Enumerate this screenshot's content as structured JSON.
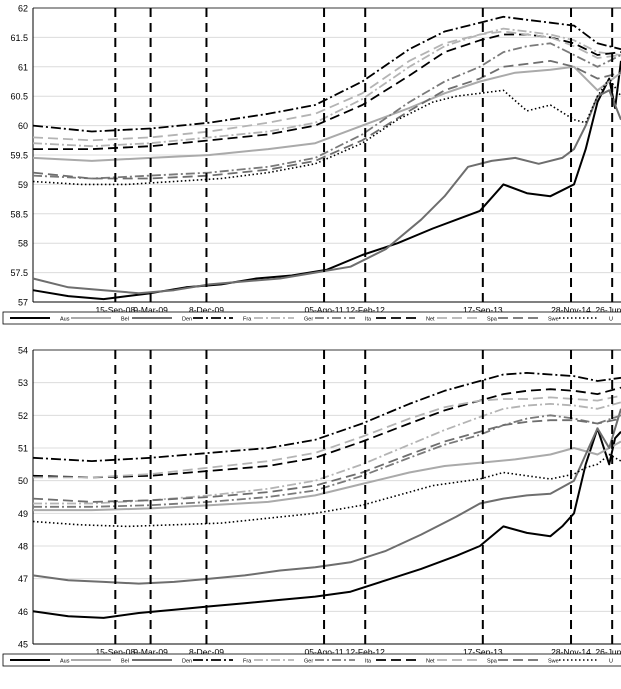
{
  "chart_data": [
    {
      "type": "line",
      "ylim": [
        57,
        62
      ],
      "yticks": [
        57,
        57.5,
        58,
        58.5,
        59,
        59.5,
        60,
        60.5,
        61,
        61.5,
        62
      ],
      "xlim": [
        0,
        100
      ],
      "event_lines": [
        {
          "label": "15-Sep-08",
          "x": 14
        },
        {
          "label": "9-Mar-09",
          "x": 20
        },
        {
          "label": "8-Dec-09",
          "x": 29.5
        },
        {
          "label": "05-Ago-11",
          "x": 49.5
        },
        {
          "label": "12-Feb-12",
          "x": 56.5
        },
        {
          "label": "17-Sep-13",
          "x": 76.5
        },
        {
          "label": "28-Nov-14",
          "x": 91.5
        },
        {
          "label": "26-Jun-1",
          "x": 98.5
        }
      ],
      "grid": true,
      "legend_position": "bottom",
      "series": [
        {
          "name": "Aus",
          "x": [
            0,
            6,
            12,
            16,
            20,
            26,
            32,
            38,
            44,
            50,
            56,
            62,
            68,
            72,
            76,
            80,
            84,
            88,
            90,
            92,
            94,
            96,
            98,
            99,
            100
          ],
          "values": [
            57.2,
            57.1,
            57.05,
            57.1,
            57.15,
            57.25,
            57.3,
            57.4,
            57.45,
            57.55,
            57.8,
            58.0,
            58.25,
            58.4,
            58.55,
            59.0,
            58.85,
            58.8,
            58.9,
            59.0,
            59.6,
            60.4,
            60.8,
            60.3,
            61.1
          ]
        },
        {
          "name": "Bel",
          "x": [
            0,
            10,
            20,
            30,
            40,
            48,
            56,
            64,
            70,
            76,
            82,
            88,
            92,
            96,
            100
          ],
          "values": [
            59.45,
            59.4,
            59.45,
            59.5,
            59.6,
            59.7,
            60.0,
            60.3,
            60.55,
            60.75,
            60.9,
            60.95,
            61.0,
            60.6,
            60.9
          ]
        },
        {
          "name": "Den",
          "x": [
            0,
            6,
            12,
            18,
            24,
            30,
            36,
            42,
            48,
            54,
            60,
            66,
            70,
            74,
            78,
            82,
            86,
            90,
            92,
            94,
            96,
            98,
            100
          ],
          "values": [
            57.4,
            57.25,
            57.2,
            57.15,
            57.2,
            57.3,
            57.35,
            57.4,
            57.5,
            57.6,
            57.9,
            58.4,
            58.8,
            59.3,
            59.4,
            59.45,
            59.35,
            59.45,
            59.6,
            60.0,
            60.5,
            60.6,
            60.1
          ]
        },
        {
          "name": "Fra",
          "x": [
            0,
            10,
            20,
            30,
            40,
            48,
            56,
            64,
            70,
            76,
            80,
            84,
            88,
            92,
            96,
            100
          ],
          "values": [
            60.0,
            59.9,
            59.95,
            60.05,
            60.2,
            60.35,
            60.75,
            61.3,
            61.6,
            61.75,
            61.85,
            61.8,
            61.75,
            61.7,
            61.4,
            61.3
          ]
        },
        {
          "name": "Ger",
          "x": [
            0,
            10,
            20,
            30,
            40,
            48,
            56,
            64,
            70,
            76,
            80,
            84,
            88,
            92,
            96,
            100
          ],
          "values": [
            59.7,
            59.65,
            59.7,
            59.8,
            59.9,
            60.05,
            60.45,
            61.0,
            61.35,
            61.55,
            61.65,
            61.6,
            61.55,
            61.45,
            61.25,
            61.2
          ]
        },
        {
          "name": "Ita",
          "x": [
            0,
            10,
            20,
            30,
            40,
            48,
            56,
            64,
            70,
            76,
            80,
            84,
            88,
            92,
            96,
            100
          ],
          "values": [
            59.15,
            59.1,
            59.15,
            59.2,
            59.3,
            59.45,
            59.85,
            60.4,
            60.75,
            61.0,
            61.25,
            61.35,
            61.4,
            61.2,
            61.0,
            61.2
          ]
        },
        {
          "name": "Net",
          "x": [
            0,
            10,
            20,
            30,
            40,
            48,
            56,
            64,
            70,
            76,
            80,
            84,
            88,
            92,
            96,
            100
          ],
          "values": [
            59.6,
            59.6,
            59.65,
            59.75,
            59.85,
            60.0,
            60.35,
            60.85,
            61.25,
            61.45,
            61.55,
            61.55,
            61.5,
            61.4,
            61.2,
            61.25
          ]
        },
        {
          "name": "Spa",
          "x": [
            0,
            10,
            20,
            30,
            40,
            48,
            56,
            64,
            70,
            76,
            80,
            84,
            88,
            92,
            96,
            100
          ],
          "values": [
            59.8,
            59.75,
            59.8,
            59.9,
            60.05,
            60.2,
            60.55,
            61.1,
            61.4,
            61.55,
            61.6,
            61.55,
            61.5,
            61.35,
            61.15,
            61.2
          ]
        },
        {
          "name": "Swe",
          "x": [
            0,
            10,
            20,
            30,
            40,
            48,
            56,
            64,
            70,
            76,
            80,
            84,
            88,
            92,
            96,
            100
          ],
          "values": [
            59.2,
            59.1,
            59.1,
            59.15,
            59.25,
            59.4,
            59.75,
            60.25,
            60.6,
            60.8,
            61.0,
            61.05,
            61.1,
            61.0,
            60.8,
            60.9
          ]
        },
        {
          "name": "U",
          "x": [
            0,
            8,
            16,
            24,
            32,
            40,
            48,
            56,
            62,
            68,
            72,
            76,
            80,
            84,
            88,
            92,
            94,
            96,
            98,
            100
          ],
          "values": [
            59.05,
            59.0,
            59.0,
            59.05,
            59.1,
            59.2,
            59.35,
            59.7,
            60.1,
            60.4,
            60.5,
            60.55,
            60.6,
            60.25,
            60.35,
            60.1,
            60.05,
            60.5,
            60.8,
            60.5
          ]
        }
      ]
    },
    {
      "type": "line",
      "ylim": [
        45,
        54
      ],
      "yticks": [
        45,
        46,
        47,
        48,
        49,
        50,
        51,
        52,
        53,
        54
      ],
      "xlim": [
        0,
        100
      ],
      "event_lines": [
        {
          "label": "15-Sep-08",
          "x": 14
        },
        {
          "label": "9-Mar-09",
          "x": 20
        },
        {
          "label": "8-Dec-09",
          "x": 29.5
        },
        {
          "label": "05-Ago-11",
          "x": 49.5
        },
        {
          "label": "12-Feb-12",
          "x": 56.5
        },
        {
          "label": "17-Sep-13",
          "x": 76.5
        },
        {
          "label": "28-Nov-14",
          "x": 91.5
        },
        {
          "label": "26-Jun-1",
          "x": 98.5
        }
      ],
      "grid": true,
      "legend_position": "bottom",
      "series": [
        {
          "name": "Aus",
          "x": [
            0,
            6,
            12,
            18,
            24,
            30,
            36,
            42,
            48,
            54,
            60,
            66,
            72,
            76,
            80,
            84,
            88,
            90,
            92,
            94,
            96,
            98,
            99,
            100
          ],
          "values": [
            46.0,
            45.85,
            45.8,
            45.95,
            46.05,
            46.15,
            46.25,
            46.35,
            46.45,
            46.6,
            46.95,
            47.3,
            47.7,
            48.0,
            48.6,
            48.4,
            48.3,
            48.6,
            49.0,
            50.5,
            51.6,
            50.5,
            51.3,
            51.5
          ]
        },
        {
          "name": "Bel",
          "x": [
            0,
            10,
            20,
            30,
            40,
            48,
            56,
            64,
            70,
            76,
            82,
            88,
            92,
            96,
            100
          ],
          "values": [
            49.1,
            49.1,
            49.15,
            49.25,
            49.35,
            49.55,
            49.9,
            50.25,
            50.45,
            50.55,
            50.65,
            50.8,
            51.0,
            50.8,
            51.2
          ]
        },
        {
          "name": "Den",
          "x": [
            0,
            6,
            12,
            18,
            24,
            30,
            36,
            42,
            48,
            54,
            60,
            66,
            72,
            76,
            80,
            84,
            88,
            92,
            94,
            96,
            98,
            100
          ],
          "values": [
            47.1,
            46.95,
            46.9,
            46.85,
            46.9,
            47.0,
            47.1,
            47.25,
            47.35,
            47.5,
            47.85,
            48.35,
            48.9,
            49.3,
            49.45,
            49.55,
            49.6,
            50.0,
            50.8,
            51.6,
            51.0,
            52.2
          ]
        },
        {
          "name": "Fra",
          "x": [
            0,
            10,
            20,
            30,
            40,
            48,
            56,
            64,
            70,
            76,
            80,
            84,
            88,
            92,
            96,
            100
          ],
          "values": [
            50.7,
            50.6,
            50.7,
            50.85,
            51.0,
            51.25,
            51.75,
            52.35,
            52.75,
            53.05,
            53.25,
            53.3,
            53.25,
            53.2,
            53.05,
            53.15
          ]
        },
        {
          "name": "Ger",
          "x": [
            0,
            10,
            20,
            30,
            40,
            48,
            56,
            64,
            70,
            76,
            80,
            84,
            88,
            92,
            96,
            100
          ],
          "values": [
            49.3,
            49.3,
            49.4,
            49.55,
            49.75,
            50.0,
            50.5,
            51.1,
            51.55,
            51.95,
            52.2,
            52.3,
            52.35,
            52.3,
            52.2,
            52.4
          ]
        },
        {
          "name": "Ita",
          "x": [
            0,
            10,
            20,
            30,
            40,
            48,
            56,
            64,
            70,
            76,
            80,
            84,
            88,
            92,
            96,
            100
          ],
          "values": [
            49.2,
            49.2,
            49.25,
            49.35,
            49.5,
            49.7,
            50.15,
            50.7,
            51.1,
            51.4,
            51.7,
            51.9,
            52.0,
            51.9,
            51.75,
            52.0
          ]
        },
        {
          "name": "Net",
          "x": [
            0,
            10,
            20,
            30,
            40,
            48,
            56,
            64,
            70,
            76,
            80,
            84,
            88,
            92,
            96,
            100
          ],
          "values": [
            50.15,
            50.1,
            50.15,
            50.3,
            50.45,
            50.7,
            51.2,
            51.75,
            52.15,
            52.45,
            52.65,
            52.75,
            52.8,
            52.75,
            52.65,
            52.85
          ]
        },
        {
          "name": "Spa",
          "x": [
            0,
            10,
            20,
            30,
            40,
            48,
            56,
            64,
            70,
            76,
            80,
            84,
            88,
            92,
            96,
            100
          ],
          "values": [
            50.1,
            50.1,
            50.2,
            50.4,
            50.6,
            50.85,
            51.35,
            51.9,
            52.25,
            52.45,
            52.5,
            52.5,
            52.55,
            52.5,
            52.45,
            52.6
          ]
        },
        {
          "name": "Swe",
          "x": [
            0,
            10,
            20,
            30,
            40,
            48,
            56,
            64,
            70,
            76,
            80,
            84,
            88,
            92,
            96,
            100
          ],
          "values": [
            49.45,
            49.35,
            49.4,
            49.5,
            49.65,
            49.85,
            50.25,
            50.8,
            51.2,
            51.5,
            51.7,
            51.8,
            51.85,
            51.85,
            51.75,
            51.9
          ]
        },
        {
          "name": "U",
          "x": [
            0,
            8,
            16,
            24,
            32,
            40,
            48,
            56,
            62,
            68,
            72,
            76,
            80,
            84,
            88,
            92,
            94,
            96,
            98,
            100
          ],
          "values": [
            48.75,
            48.65,
            48.6,
            48.65,
            48.7,
            48.85,
            49.0,
            49.25,
            49.55,
            49.85,
            49.95,
            50.05,
            50.25,
            50.15,
            50.05,
            50.2,
            50.4,
            50.5,
            50.8,
            50.6
          ]
        }
      ]
    }
  ]
}
